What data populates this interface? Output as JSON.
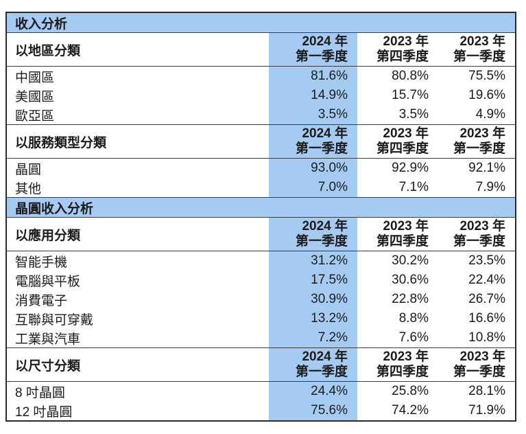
{
  "colors": {
    "highlight_blue": "#A6CBF2",
    "border_dark": "#2a2a2a",
    "text": "#1b1b1b"
  },
  "table": {
    "sections": [
      {
        "kind": "band",
        "title": "收入分析"
      },
      {
        "kind": "header",
        "label": "以地區分類",
        "columns": [
          {
            "line1": "2024 年",
            "line2": "第一季度"
          },
          {
            "line1": "2023 年",
            "line2": "第四季度"
          },
          {
            "line1": "2023 年",
            "line2": "第一季度"
          }
        ]
      },
      {
        "kind": "rows",
        "rows": [
          {
            "label": "中國區",
            "values": [
              "81.6%",
              "80.8%",
              "75.5%"
            ]
          },
          {
            "label": "美國區",
            "values": [
              "14.9%",
              "15.7%",
              "19.6%"
            ]
          },
          {
            "label": "歐亞區",
            "values": [
              "3.5%",
              "3.5%",
              "4.9%"
            ]
          }
        ]
      },
      {
        "kind": "header",
        "label": "以服務類型分類",
        "columns": [
          {
            "line1": "2024 年",
            "line2": "第一季度"
          },
          {
            "line1": "2023 年",
            "line2": "第四季度"
          },
          {
            "line1": "2023 年",
            "line2": "第一季度"
          }
        ]
      },
      {
        "kind": "rows",
        "rows": [
          {
            "label": "晶圓",
            "values": [
              "93.0%",
              "92.9%",
              "92.1%"
            ]
          },
          {
            "label": "其他",
            "values": [
              "7.0%",
              "7.1%",
              "7.9%"
            ]
          }
        ]
      },
      {
        "kind": "band",
        "title": "晶圓收入分析"
      },
      {
        "kind": "header",
        "label": "以應用分類",
        "columns": [
          {
            "line1": "2024 年",
            "line2": "第一季度"
          },
          {
            "line1": "2023 年",
            "line2": "第四季度"
          },
          {
            "line1": "2023 年",
            "line2": "第一季度"
          }
        ]
      },
      {
        "kind": "rows",
        "rows": [
          {
            "label": "智能手機",
            "values": [
              "31.2%",
              "30.2%",
              "23.5%"
            ]
          },
          {
            "label": "電腦與平板",
            "values": [
              "17.5%",
              "30.6%",
              "22.4%"
            ]
          },
          {
            "label": "消費電子",
            "values": [
              "30.9%",
              "22.8%",
              "26.7%"
            ]
          },
          {
            "label": "互聯與可穿戴",
            "values": [
              "13.2%",
              "8.8%",
              "16.6%"
            ]
          },
          {
            "label": "工業與汽車",
            "values": [
              "7.2%",
              "7.6%",
              "10.8%"
            ]
          }
        ]
      },
      {
        "kind": "header",
        "label": "以尺寸分類",
        "columns": [
          {
            "line1": "2024 年",
            "line2": "第一季度"
          },
          {
            "line1": "2023 年",
            "line2": "第四季度"
          },
          {
            "line1": "2023 年",
            "line2": "第一季度"
          }
        ]
      },
      {
        "kind": "rows",
        "rows": [
          {
            "label": "8 吋晶圓",
            "values": [
              "24.4%",
              "25.8%",
              "28.1%"
            ]
          },
          {
            "label": "12 吋晶圓",
            "values": [
              "75.6%",
              "74.2%",
              "71.9%"
            ]
          }
        ]
      }
    ]
  }
}
